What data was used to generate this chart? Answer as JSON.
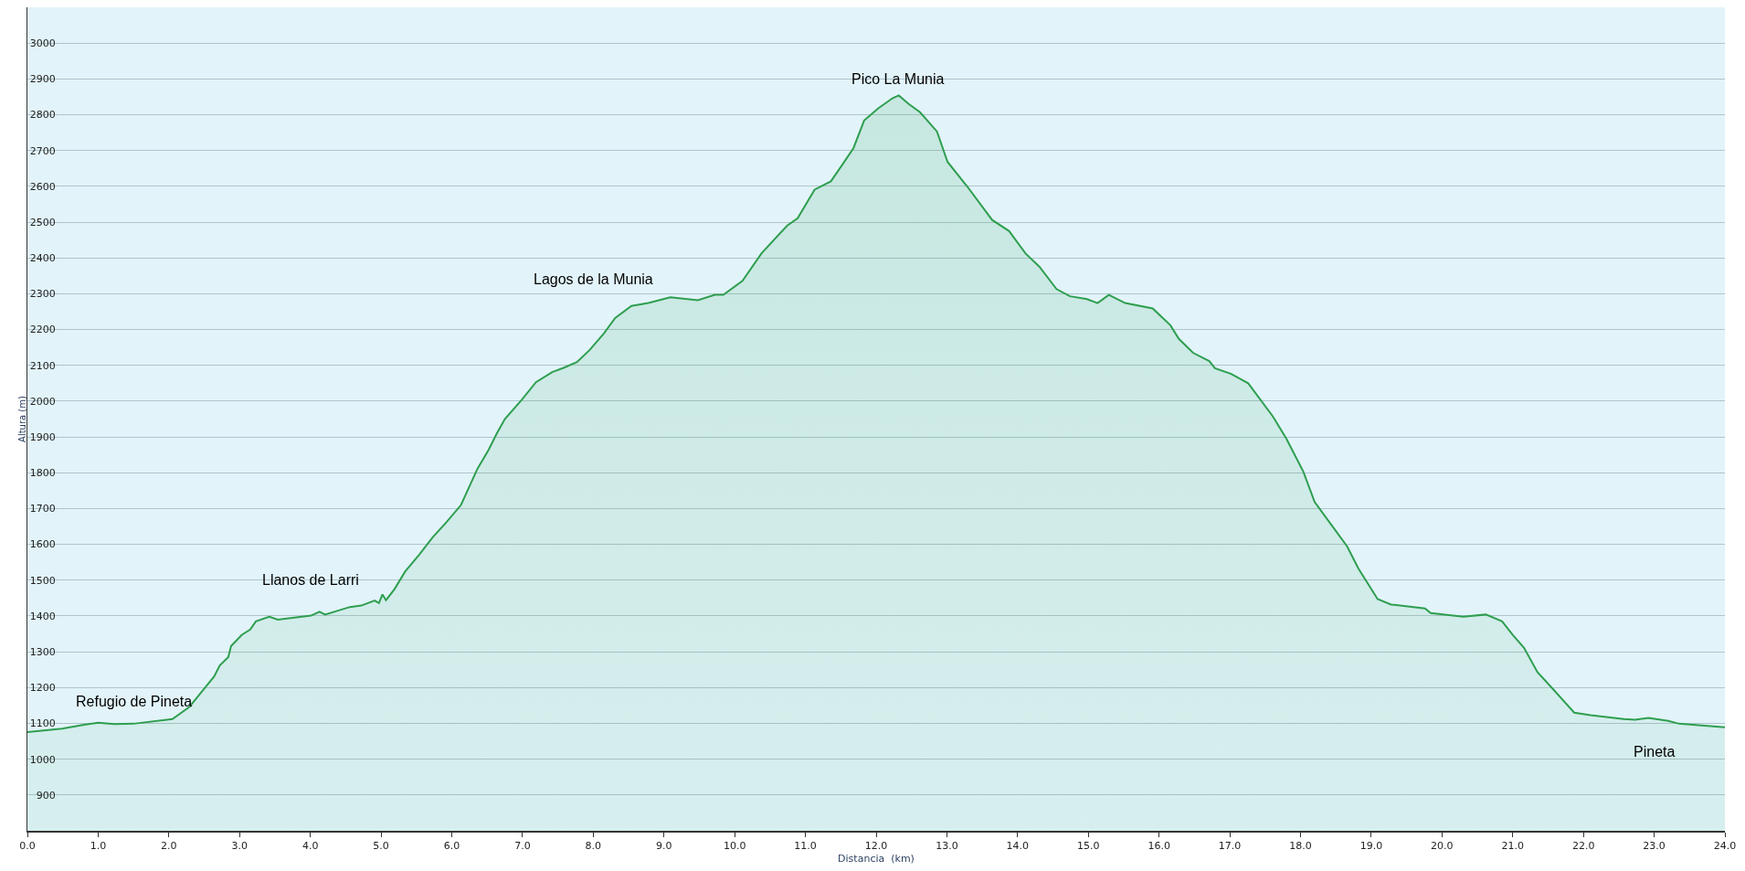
{
  "chart_data": {
    "type": "area",
    "xlabel": "Distancia  (km)",
    "ylabel": "Altura (m)",
    "xlim": [
      0,
      24
    ],
    "ylim": [
      800,
      3100
    ],
    "xticks": [
      {
        "value": 0,
        "label": "0.0"
      },
      {
        "value": 1,
        "label": "1.0"
      },
      {
        "value": 2,
        "label": "2.0"
      },
      {
        "value": 3,
        "label": "3.0"
      },
      {
        "value": 4,
        "label": "4.0"
      },
      {
        "value": 5,
        "label": "5.0"
      },
      {
        "value": 6,
        "label": "6.0"
      },
      {
        "value": 7,
        "label": "7.0"
      },
      {
        "value": 8,
        "label": "8.0"
      },
      {
        "value": 9,
        "label": "9.0"
      },
      {
        "value": 10,
        "label": "10.0"
      },
      {
        "value": 11,
        "label": "11.0"
      },
      {
        "value": 12,
        "label": "12.0"
      },
      {
        "value": 13,
        "label": "13.0"
      },
      {
        "value": 14,
        "label": "14.0"
      },
      {
        "value": 15,
        "label": "15.0"
      },
      {
        "value": 16,
        "label": "16.0"
      },
      {
        "value": 17,
        "label": "17.0"
      },
      {
        "value": 18,
        "label": "18.0"
      },
      {
        "value": 19,
        "label": "19.0"
      },
      {
        "value": 20,
        "label": "20.0"
      },
      {
        "value": 21,
        "label": "21.0"
      },
      {
        "value": 22,
        "label": "22.0"
      },
      {
        "value": 23,
        "label": "23.0"
      },
      {
        "value": 24,
        "label": "24.0"
      }
    ],
    "yticks": [
      900,
      1000,
      1100,
      1200,
      1300,
      1400,
      1500,
      1600,
      1700,
      1800,
      1900,
      2000,
      2100,
      2200,
      2300,
      2400,
      2500,
      2600,
      2700,
      2800,
      2900,
      3000
    ],
    "grid": "y",
    "marker": "none",
    "line_style": "solid",
    "annotations": [
      "Refugio de Pineta",
      "Llanos de Larri",
      "Lagos de la Munia",
      "Pico La Munia",
      "Pineta"
    ],
    "series": [
      {
        "color": "#2e9e4f",
        "x": [
          0,
          0.49,
          0.8,
          1.0,
          1.23,
          1.5,
          2.05,
          2.29,
          2.48,
          2.64,
          2.72,
          2.84,
          2.88,
          3.03,
          3.15,
          3.23,
          3.42,
          3.54,
          4.01,
          4.13,
          4.21,
          4.56,
          4.72,
          4.91,
          4.97,
          5.02,
          5.07,
          5.19,
          5.34,
          5.54,
          5.73,
          5.93,
          6.13,
          6.36,
          6.52,
          6.64,
          6.75,
          6.99,
          7.19,
          7.42,
          7.58,
          7.77,
          7.95,
          8.15,
          8.31,
          8.54,
          8.78,
          9.09,
          9.48,
          9.72,
          9.84,
          10.11,
          10.38,
          10.74,
          10.89,
          11.13,
          11.36,
          11.52,
          11.68,
          11.83,
          12.03,
          12.23,
          12.32,
          12.46,
          12.62,
          12.86,
          13.01,
          13.29,
          13.64,
          13.88,
          14.11,
          14.31,
          14.55,
          14.74,
          14.98,
          15.13,
          15.29,
          15.52,
          15.91,
          16.16,
          16.28,
          16.48,
          16.71,
          16.79,
          17.02,
          17.26,
          17.61,
          17.8,
          18.04,
          18.2,
          18.43,
          18.66,
          18.82,
          19.09,
          19.28,
          19.76,
          19.84,
          20.3,
          20.62,
          20.85,
          21.0,
          21.16,
          21.35,
          21.55,
          21.87,
          22.1,
          22.57,
          22.73,
          22.92,
          23.2,
          23.35,
          24.0
        ],
        "values": [
          1076,
          1085,
          1096,
          1102,
          1098,
          1099,
          1112,
          1146,
          1192,
          1231,
          1262,
          1285,
          1316,
          1347,
          1362,
          1385,
          1398,
          1390,
          1401,
          1412,
          1404,
          1425,
          1429,
          1443,
          1436,
          1460,
          1444,
          1475,
          1524,
          1571,
          1620,
          1663,
          1710,
          1810,
          1864,
          1911,
          1950,
          2004,
          2053,
          2081,
          2093,
          2109,
          2143,
          2189,
          2232,
          2266,
          2274,
          2290,
          2282,
          2297,
          2297,
          2336,
          2413,
          2490,
          2511,
          2591,
          2614,
          2660,
          2707,
          2784,
          2818,
          2846,
          2854,
          2830,
          2807,
          2753,
          2668,
          2599,
          2506,
          2475,
          2413,
          2375,
          2313,
          2293,
          2285,
          2274,
          2297,
          2274,
          2259,
          2212,
          2174,
          2135,
          2112,
          2092,
          2076,
          2050,
          1957,
          1895,
          1803,
          1718,
          1656,
          1594,
          1532,
          1447,
          1432,
          1421,
          1408,
          1398,
          1404,
          1385,
          1347,
          1311,
          1243,
          1200,
          1130,
          1123,
          1112,
          1110,
          1115,
          1107,
          1099,
          1089
        ]
      }
    ]
  }
}
